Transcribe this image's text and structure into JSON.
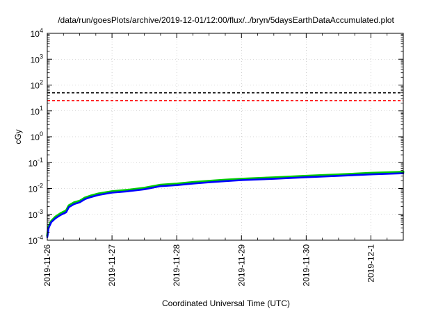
{
  "chart_data": {
    "type": "line",
    "title": "/data/run/goesPlots/archive/2019-12-01/12:00/flux/../bryn/5daysEarthDataAccumulated.plot",
    "xlabel": "Coordinated Universal Time (UTC)",
    "ylabel": "cGy",
    "yscale": "log",
    "ylim": [
      0.0001,
      10000
    ],
    "xlim": [
      "2019-11-26",
      "2019-12-01 12:00"
    ],
    "grid": true,
    "x_ticks": [
      "2019-11-26",
      "2019-11-27",
      "2019-11-28",
      "2019-11-29",
      "2019-11-30",
      "2019-12-1"
    ],
    "y_ticks": [
      {
        "base": "10",
        "exp": "-4",
        "value": 0.0001
      },
      {
        "base": "10",
        "exp": "-3",
        "value": 0.001
      },
      {
        "base": "10",
        "exp": "-2",
        "value": 0.01
      },
      {
        "base": "10",
        "exp": "-1",
        "value": 0.1
      },
      {
        "base": "10",
        "exp": "0",
        "value": 1
      },
      {
        "base": "10",
        "exp": "1",
        "value": 10
      },
      {
        "base": "10",
        "exp": "2",
        "value": 100
      },
      {
        "base": "10",
        "exp": "3",
        "value": 1000
      },
      {
        "base": "10",
        "exp": "4",
        "value": 10000
      }
    ],
    "thresholds": [
      {
        "value": 50,
        "color": "#000000",
        "style": "dashed"
      },
      {
        "value": 25,
        "color": "#ff0000",
        "style": "dashed"
      }
    ],
    "series": [
      {
        "color": "#00cc00",
        "x": [
          "2019-11-26 00:00",
          "2019-11-26 00:30",
          "2019-11-26 01:30",
          "2019-11-26 03:00",
          "2019-11-26 05:00",
          "2019-11-26 07:00",
          "2019-11-26 08:00",
          "2019-11-26 10:00",
          "2019-11-26 12:00",
          "2019-11-26 14:00",
          "2019-11-26 16:00",
          "2019-11-26 19:00",
          "2019-11-27 00:00",
          "2019-11-27 06:00",
          "2019-11-27 12:00",
          "2019-11-27 18:00",
          "2019-11-28 00:00",
          "2019-11-28 06:00",
          "2019-11-28 12:00",
          "2019-11-28 18:00",
          "2019-11-29 00:00",
          "2019-11-29 12:00",
          "2019-11-30 00:00",
          "2019-11-30 12:00",
          "2019-12-01 00:00",
          "2019-12-01 12:00"
        ],
        "y": [
          0.00015,
          0.00035,
          0.00055,
          0.0008,
          0.0011,
          0.0014,
          0.0022,
          0.0029,
          0.0033,
          0.0044,
          0.0052,
          0.0063,
          0.0077,
          0.0088,
          0.0105,
          0.0138,
          0.0152,
          0.0175,
          0.0195,
          0.0215,
          0.0235,
          0.0265,
          0.0305,
          0.0345,
          0.0395,
          0.0435
        ]
      },
      {
        "color": "#0000ff",
        "x": [
          "2019-11-26 00:00",
          "2019-11-26 00:30",
          "2019-11-26 01:30",
          "2019-11-26 03:00",
          "2019-11-26 05:00",
          "2019-11-26 07:00",
          "2019-11-26 08:00",
          "2019-11-26 10:00",
          "2019-11-26 12:00",
          "2019-11-26 14:00",
          "2019-11-26 16:00",
          "2019-11-26 19:00",
          "2019-11-27 00:00",
          "2019-11-27 06:00",
          "2019-11-27 12:00",
          "2019-11-27 18:00",
          "2019-11-28 00:00",
          "2019-11-28 06:00",
          "2019-11-28 12:00",
          "2019-11-28 18:00",
          "2019-11-29 00:00",
          "2019-11-29 12:00",
          "2019-11-30 00:00",
          "2019-11-30 12:00",
          "2019-12-01 00:00",
          "2019-12-01 12:00"
        ],
        "y": [
          0.00013,
          0.0003,
          0.0005,
          0.0007,
          0.00095,
          0.0012,
          0.0019,
          0.0025,
          0.0029,
          0.0039,
          0.0046,
          0.0056,
          0.0069,
          0.0078,
          0.0093,
          0.0123,
          0.0135,
          0.0155,
          0.0173,
          0.0192,
          0.021,
          0.0237,
          0.0272,
          0.0307,
          0.0352,
          0.0388
        ]
      }
    ]
  }
}
